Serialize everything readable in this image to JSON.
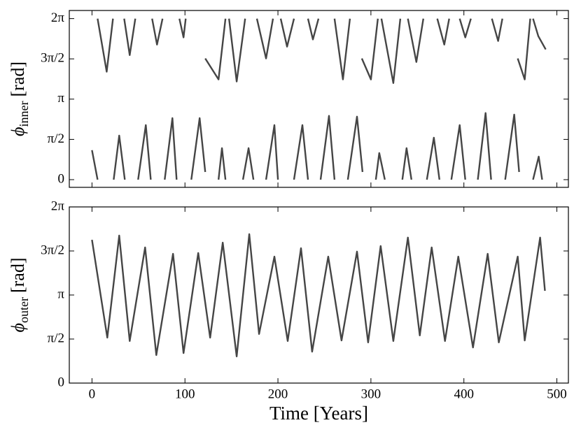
{
  "chart_data": [
    {
      "type": "line",
      "ylabel": {
        "symbol": "ϕ",
        "subscript": "inner",
        "unit": "[rad]"
      },
      "xlim": [
        -24.4,
        512.4
      ],
      "xticks": [
        0,
        100,
        200,
        300,
        400,
        500
      ],
      "ylim": [
        -0.3,
        6.6
      ],
      "yticks": [
        0,
        {
          "value": 1.5708,
          "label": "π/2"
        },
        {
          "value": 3.1416,
          "label": "π"
        },
        {
          "value": 4.7124,
          "label": "3π/2"
        },
        {
          "value": 6.2832,
          "label": "2π"
        }
      ],
      "series": [
        {
          "color": "#454545",
          "x": [
            6.0,
            15.8,
            22.6,
            null,
            34.6,
            40.6,
            46.6,
            null,
            64.7,
            69.9,
            75.9,
            null,
            94.0,
            98.5,
            100.8,
            null,
            121.8,
            136.1,
            143.6,
            null,
            147.4,
            155.6,
            164.7,
            null,
            177.4,
            187.2,
            194.7,
            null,
            203.0,
            209.8,
            217.3,
            null,
            232.3,
            237.6,
            243.6,
            null,
            260.9,
            269.9,
            277.4,
            null,
            290.2,
            300.0,
            307.5,
            null,
            311.3,
            324.1,
            331.6,
            null,
            339.8,
            348.9,
            356.4,
            null,
            371.4,
            378.9,
            384.2,
            null,
            395.5,
            401.5,
            407.5,
            null,
            430.1,
            436.8,
            441.4,
            null,
            457.9,
            465.4,
            471.4,
            null,
            474.4,
            480.0,
            488.0
          ],
          "values": [
            6.28,
            4.21,
            6.28,
            null,
            6.28,
            4.86,
            6.28,
            null,
            6.28,
            5.27,
            6.28,
            null,
            6.28,
            5.55,
            6.28,
            null,
            4.73,
            3.91,
            6.28,
            null,
            6.28,
            3.83,
            6.28,
            null,
            6.28,
            4.73,
            6.28,
            null,
            6.28,
            5.19,
            6.28,
            null,
            6.28,
            5.47,
            6.28,
            null,
            6.28,
            3.91,
            6.28,
            null,
            4.73,
            3.91,
            6.28,
            null,
            6.28,
            3.77,
            6.28,
            null,
            6.28,
            4.59,
            6.28,
            null,
            6.28,
            5.27,
            6.28,
            null,
            6.28,
            5.55,
            6.28,
            null,
            6.28,
            5.41,
            6.28,
            null,
            4.73,
            3.91,
            6.28,
            null,
            6.28,
            5.6,
            5.08
          ]
        },
        {
          "color": "#454545",
          "x": [
            0,
            6.0,
            null,
            23.3,
            29.3,
            35.3,
            null,
            49.6,
            57.9,
            63.2,
            null,
            78.2,
            86.5,
            91.0,
            null,
            106.8,
            115.8,
            121.8,
            null,
            136.1,
            139.8,
            143.6,
            null,
            162.4,
            168.4,
            173.7,
            null,
            187.2,
            196.2,
            200.0,
            null,
            217.3,
            226.3,
            232.3,
            null,
            245.9,
            254.9,
            260.9,
            null,
            275.2,
            285.0,
            291.0,
            null,
            305.3,
            309.0,
            315.0,
            null,
            333.8,
            338.3,
            343.6,
            null,
            360.2,
            367.7,
            373.7,
            null,
            386.5,
            395.5,
            401.5,
            null,
            415.0,
            423.3,
            429.3,
            null,
            444.4,
            454.1,
            459.4,
            null,
            474.4,
            480.5,
            484.2
          ],
          "values": [
            1.15,
            0,
            null,
            0,
            1.72,
            0,
            null,
            0,
            2.13,
            0,
            null,
            0,
            2.4,
            0,
            null,
            0,
            2.4,
            0.3,
            null,
            0,
            1.23,
            0,
            null,
            0,
            1.23,
            0,
            null,
            0,
            2.13,
            0,
            null,
            0,
            2.13,
            0,
            null,
            0,
            2.49,
            0,
            null,
            0,
            2.46,
            0.3,
            null,
            0,
            1.04,
            0,
            null,
            0,
            1.23,
            0,
            null,
            0,
            1.64,
            0,
            null,
            0,
            2.13,
            0,
            null,
            0,
            2.6,
            0,
            null,
            0,
            2.54,
            0.3,
            null,
            0,
            0.9,
            0
          ]
        }
      ]
    },
    {
      "type": "line",
      "ylabel": {
        "symbol": "ϕ",
        "subscript": "outer",
        "unit": "[rad]"
      },
      "xlabel": "Time [Years]",
      "xlim": [
        -24.4,
        512.4
      ],
      "xticks": [
        0,
        100,
        200,
        300,
        400,
        500
      ],
      "ylim": [
        0,
        6.2832
      ],
      "yticks": [
        0,
        {
          "value": 1.5708,
          "label": "π/2"
        },
        {
          "value": 3.1416,
          "label": "π"
        },
        {
          "value": 4.7124,
          "label": "3π/2"
        },
        {
          "value": 6.2832,
          "label": "2π"
        }
      ],
      "series": [
        {
          "color": "#454545",
          "x": [
            0,
            16.5,
            29.3,
            40.6,
            57.1,
            69.2,
            87.2,
            98.5,
            114.3,
            127.1,
            140.6,
            155.6,
            169.2,
            179.7,
            196.2,
            210.5,
            224.8,
            236.8,
            254.1,
            268.4,
            285.0,
            297.0,
            310.5,
            324.1,
            339.8,
            352.6,
            365.4,
            379.7,
            394.0,
            409.8,
            425.6,
            437.6,
            457.9,
            465.4,
            482.0,
            487.2
          ],
          "values": [
            5.11,
            1.62,
            5.26,
            1.5,
            4.84,
            1.0,
            4.61,
            1.07,
            4.64,
            1.62,
            5.01,
            0.95,
            5.31,
            1.75,
            4.51,
            1.5,
            4.81,
            1.12,
            4.51,
            1.52,
            4.69,
            1.45,
            4.89,
            1.5,
            5.19,
            1.7,
            4.84,
            1.5,
            4.51,
            1.27,
            4.61,
            1.45,
            4.51,
            1.52,
            5.19,
            3.29
          ]
        }
      ]
    }
  ]
}
